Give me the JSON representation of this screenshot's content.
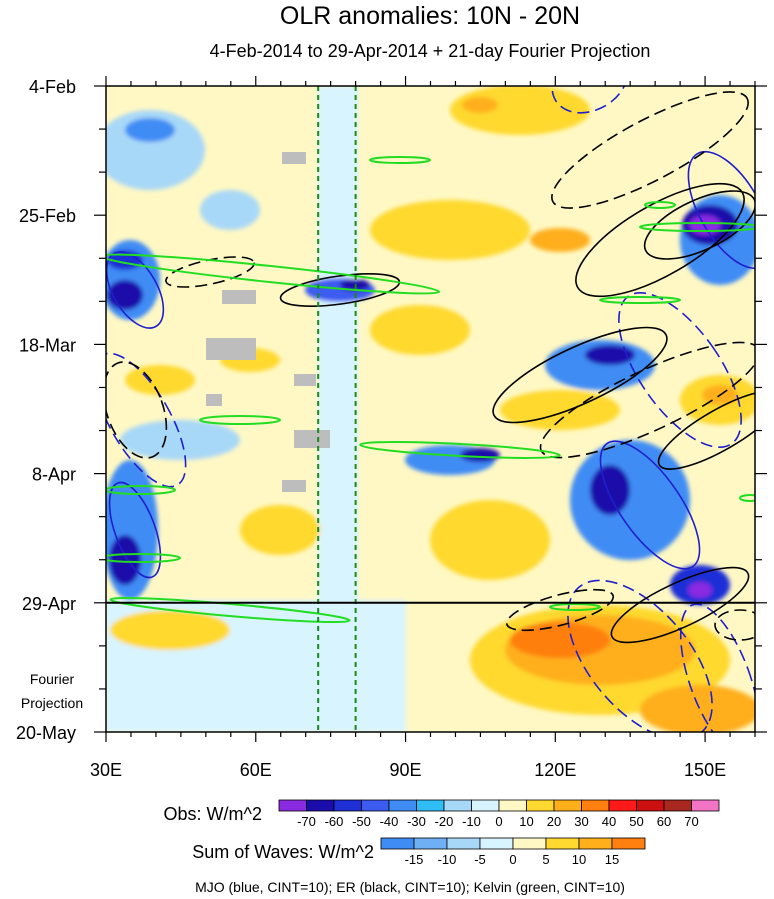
{
  "chart_data": {
    "type": "heatmap",
    "title": "OLR anomalies: 10N - 20N",
    "subtitle": "4-Feb-2014 to 29-Apr-2014 + 21-day Fourier Projection",
    "x_tick_labels": [
      "30E",
      "60E",
      "90E",
      "120E",
      "150E"
    ],
    "x_ticks": [
      30,
      60,
      90,
      120,
      150
    ],
    "xlim": [
      30,
      160
    ],
    "y_tick_labels": [
      "4-Feb",
      "25-Feb",
      "18-Mar",
      "8-Apr",
      "29-Apr",
      "20-May"
    ],
    "y_ticks_days": [
      0,
      21,
      42,
      63,
      84,
      105
    ],
    "ylim_days": [
      0,
      105
    ],
    "projection_start_label": "29-Apr",
    "projection_label": [
      "Fourier",
      "Projection"
    ],
    "reference_longitudes": [
      72.5,
      80
    ],
    "obs_colorbar": {
      "label": "Obs: W/m^2",
      "levels": [
        "-70",
        "-60",
        "-50",
        "-40",
        "-30",
        "-20",
        "-10",
        "0",
        "10",
        "20",
        "30",
        "40",
        "50",
        "60",
        "70"
      ],
      "colors": [
        "#8a2be2",
        "#1a0dab",
        "#1f2fd6",
        "#3c5bf0",
        "#3f8cf5",
        "#2fbdf5",
        "#a8d8f7",
        "#d8f4ff",
        "#fff8c4",
        "#ffd92f",
        "#ffaf1a",
        "#ff7f0f",
        "#ff1a1a",
        "#cc0f0f",
        "#a8281f",
        "#f274c4"
      ]
    },
    "waves_colorbar": {
      "label": "Sum of Waves: W/m^2",
      "levels": [
        "-15",
        "-10",
        "-5",
        "0",
        "5",
        "10",
        "15"
      ],
      "colors": [
        "#3f8cf5",
        "#6fb0f5",
        "#a8d8f7",
        "#d8f4ff",
        "#fff8c4",
        "#ffd92f",
        "#ffaf1a",
        "#ff7f0f"
      ]
    },
    "contour_note": "MJO (blue, CINT=10); ER (black, CINT=10); Kelvin (green, CINT=10)",
    "contour_series": [
      {
        "name": "MJO",
        "color": "#1f1fcc"
      },
      {
        "name": "ER",
        "color": "#000000"
      },
      {
        "name": "Kelvin",
        "color": "#22dd22"
      }
    ]
  }
}
